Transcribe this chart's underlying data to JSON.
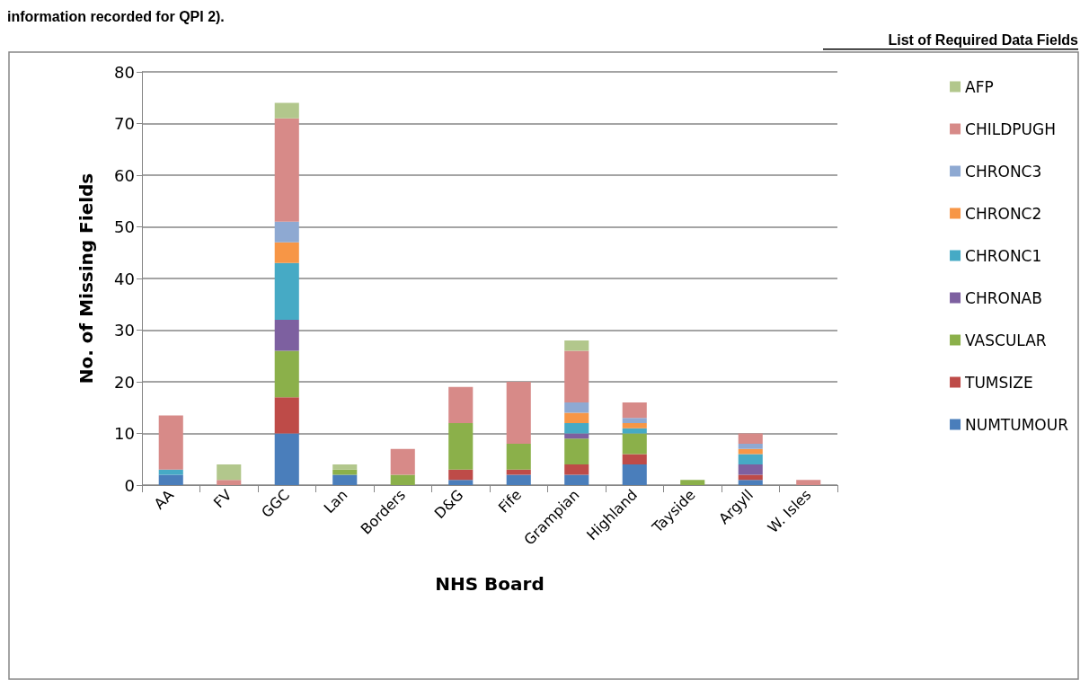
{
  "chart_data": {
    "type": "bar",
    "stacked": true,
    "xlabel": "NHS Board",
    "ylabel": "No. of Missing Fields",
    "annotations": [
      "information recorded for QPI 2).",
      "List of Required Data Fields"
    ],
    "categories": [
      "AA",
      "FV",
      "GGC",
      "Lan",
      "Borders",
      "D&G",
      "Fife",
      "Grampian",
      "Highland",
      "Tayside",
      "Argyll",
      "W. Isles"
    ],
    "series": [
      {
        "name": "NUMTUMOUR",
        "color": "#4a7ebb",
        "values": [
          2,
          0,
          10,
          2,
          0,
          1,
          2,
          2,
          4,
          0,
          1,
          0
        ]
      },
      {
        "name": "TUMSIZE",
        "color": "#be4b48",
        "values": [
          0,
          0,
          7,
          0,
          0,
          2,
          1,
          2,
          2,
          0,
          1,
          0
        ]
      },
      {
        "name": "VASCULAR",
        "color": "#8bb04a",
        "values": [
          0,
          0,
          9,
          1,
          2,
          9,
          5,
          5,
          4,
          1,
          0,
          0
        ]
      },
      {
        "name": "CHRONAB",
        "color": "#7d60a0",
        "values": [
          0,
          0,
          6,
          0,
          0,
          0,
          0,
          1,
          0,
          0,
          2,
          0
        ]
      },
      {
        "name": "CHRONC1",
        "color": "#46aac5",
        "values": [
          1,
          0,
          11,
          0,
          0,
          0,
          0,
          2,
          1,
          0,
          2,
          0
        ]
      },
      {
        "name": "CHRONC2",
        "color": "#f79646",
        "values": [
          0,
          0,
          4,
          0,
          0,
          0,
          0,
          2,
          1,
          0,
          1,
          0
        ]
      },
      {
        "name": "CHRONC3",
        "color": "#8ea9d2",
        "values": [
          0,
          0,
          4,
          0,
          0,
          0,
          0,
          2,
          1,
          0,
          1,
          0
        ]
      },
      {
        "name": "CHILDPUGH",
        "color": "#d78a88",
        "values": [
          10.5,
          1,
          20,
          0,
          5,
          7,
          12,
          10,
          3,
          0,
          2,
          1
        ]
      },
      {
        "name": "AFP",
        "color": "#b2c78c",
        "values": [
          0,
          3,
          3,
          1,
          0,
          0,
          0,
          2,
          0,
          0,
          0,
          0
        ]
      }
    ],
    "ylim": [
      0,
      80
    ],
    "yticks": [
      0,
      10,
      20,
      30,
      40,
      50,
      60,
      70,
      80
    ],
    "grid": "y",
    "legend": "right"
  }
}
